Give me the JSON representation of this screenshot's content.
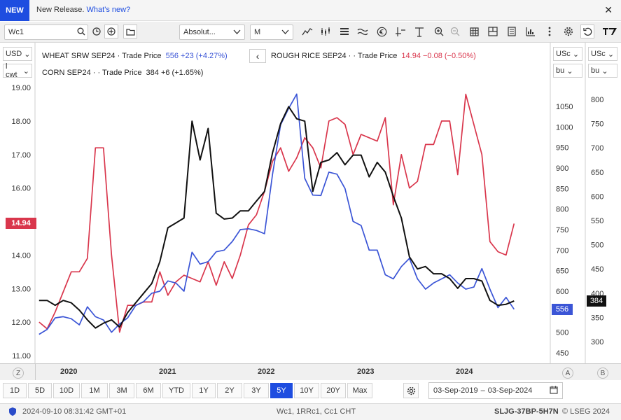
{
  "banner": {
    "badge": "NEW",
    "text": "New Release.",
    "link": "What's new?",
    "close": "✕"
  },
  "toolbar": {
    "symbol_value": "Wc1",
    "mode_label": "Absolut...",
    "interval_label": "M",
    "icons": [
      "search-icon",
      "clock-icon",
      "add-icon",
      "folder-icon",
      "line-chart-icon",
      "candle-icon",
      "bars-icon",
      "wave-icon",
      "euro-icon",
      "draw-icon",
      "text-icon",
      "zoom-in-icon",
      "zoom-out-icon",
      "grid-icon",
      "layout-icon",
      "book-icon",
      "studies-icon",
      "more-icon",
      "gear-icon",
      "undo-icon",
      "logo-icon"
    ]
  },
  "legend": {
    "wheat": {
      "name": "WHEAT SRW SEP24",
      "field": "Trade Price",
      "price": "556",
      "change": "+23 (+4.27%)"
    },
    "rice": {
      "name": "ROUGH RICE SEP24",
      "field": "Trade Price",
      "price": "14.94",
      "change": "−0.08 (−0.50%)"
    },
    "corn": {
      "name": "CORN SEP24",
      "field": "Trade Price",
      "price": "384",
      "change": "+6 (+1.65%)"
    },
    "collapse": "‹"
  },
  "left_axis": {
    "currency": "USD",
    "unit": "l cwt",
    "current_label": "14.94",
    "ticks": [
      "19.00",
      "18.00",
      "17.00",
      "16.00",
      "15.00",
      "14.00",
      "13.00",
      "12.00",
      "11.00"
    ]
  },
  "right_axis_a": {
    "currency": "USc",
    "unit": "bu",
    "current_label": "556",
    "ticks": [
      "1050",
      "1000",
      "950",
      "900",
      "850",
      "800",
      "750",
      "700",
      "650",
      "600",
      "550",
      "500",
      "450"
    ]
  },
  "right_axis_b": {
    "currency": "USc",
    "unit": "bu",
    "current_label": "384",
    "ticks": [
      "800",
      "750",
      "700",
      "650",
      "600",
      "550",
      "500",
      "450",
      "400",
      "350",
      "300"
    ]
  },
  "x_axis": {
    "labels": [
      "2020",
      "2021",
      "2022",
      "2023",
      "2024"
    ],
    "left_btn": "Z",
    "right_a_btn": "A",
    "right_b_btn": "B"
  },
  "ranges": [
    "1D",
    "5D",
    "10D",
    "1M",
    "3M",
    "6M",
    "YTD",
    "1Y",
    "2Y",
    "3Y",
    "5Y",
    "10Y",
    "20Y",
    "Max"
  ],
  "active_range": "5Y",
  "date_range": {
    "start": "03-Sep-2019",
    "sep": "–",
    "end": "03-Sep-2024"
  },
  "status": {
    "timestamp": "2024-09-10 08:31:42 GMT+01",
    "instruments": "Wc1, 1RRc1, Cc1 CHT",
    "id": "SLJG-37BP-5H7N",
    "copyright": "© LSEG 2024"
  },
  "colors": {
    "wheat": "#3b55d6",
    "rice": "#d9364c",
    "corn": "#111111",
    "accent": "#1e4de0"
  },
  "chart_data": {
    "type": "line",
    "x_range": [
      "2019-09",
      "2024-08"
    ],
    "series": [
      {
        "name": "ROUGH RICE SEP24",
        "axis": "left",
        "unit": "USD/cwt",
        "x": [
          "2019-09",
          "2019-10",
          "2019-11",
          "2019-12",
          "2020-01",
          "2020-02",
          "2020-03",
          "2020-04",
          "2020-05",
          "2020-06",
          "2020-07",
          "2020-08",
          "2020-09",
          "2020-10",
          "2020-11",
          "2020-12",
          "2021-01",
          "2021-02",
          "2021-03",
          "2021-04",
          "2021-05",
          "2021-06",
          "2021-07",
          "2021-08",
          "2021-09",
          "2021-10",
          "2021-11",
          "2021-12",
          "2022-01",
          "2022-02",
          "2022-03",
          "2022-04",
          "2022-05",
          "2022-06",
          "2022-07",
          "2022-08",
          "2022-09",
          "2022-10",
          "2022-11",
          "2022-12",
          "2023-01",
          "2023-02",
          "2023-03",
          "2023-04",
          "2023-05",
          "2023-06",
          "2023-07",
          "2023-08",
          "2023-09",
          "2023-10",
          "2023-11",
          "2023-12",
          "2024-01",
          "2024-02",
          "2024-03",
          "2024-04",
          "2024-05",
          "2024-06",
          "2024-07",
          "2024-08"
        ],
        "values": [
          12.0,
          11.8,
          12.3,
          12.9,
          13.5,
          13.5,
          13.9,
          17.2,
          17.2,
          14.0,
          11.7,
          12.5,
          12.5,
          12.6,
          12.6,
          13.5,
          12.8,
          13.2,
          13.4,
          13.3,
          13.2,
          13.8,
          13.1,
          13.8,
          13.3,
          14.0,
          14.9,
          15.2,
          15.9,
          16.8,
          17.2,
          16.5,
          16.9,
          17.5,
          17.2,
          16.6,
          18.0,
          18.1,
          17.9,
          17.0,
          17.6,
          17.5,
          17.4,
          18.1,
          15.5,
          17.0,
          16.0,
          16.2,
          17.3,
          17.3,
          18.0,
          18.0,
          16.4,
          18.8,
          17.9,
          17.0,
          14.4,
          14.1,
          14.0,
          14.94
        ]
      },
      {
        "name": "WHEAT SRW SEP24",
        "axis": "right_a",
        "unit": "USc/bu",
        "x": [
          "2019-09",
          "2019-10",
          "2019-11",
          "2019-12",
          "2020-01",
          "2020-02",
          "2020-03",
          "2020-04",
          "2020-05",
          "2020-06",
          "2020-07",
          "2020-08",
          "2020-09",
          "2020-10",
          "2020-11",
          "2020-12",
          "2021-01",
          "2021-02",
          "2021-03",
          "2021-04",
          "2021-05",
          "2021-06",
          "2021-07",
          "2021-08",
          "2021-09",
          "2021-10",
          "2021-11",
          "2021-12",
          "2022-01",
          "2022-02",
          "2022-03",
          "2022-04",
          "2022-05",
          "2022-06",
          "2022-07",
          "2022-08",
          "2022-09",
          "2022-10",
          "2022-11",
          "2022-12",
          "2023-01",
          "2023-02",
          "2023-03",
          "2023-04",
          "2023-05",
          "2023-06",
          "2023-07",
          "2023-08",
          "2023-09",
          "2023-10",
          "2023-11",
          "2023-12",
          "2024-01",
          "2024-02",
          "2024-03",
          "2024-04",
          "2024-05",
          "2024-06",
          "2024-07",
          "2024-08"
        ],
        "values": [
          495,
          507,
          535,
          538,
          533,
          518,
          562,
          538,
          530,
          500,
          520,
          535,
          565,
          575,
          595,
          600,
          625,
          620,
          600,
          695,
          666,
          672,
          696,
          700,
          721,
          750,
          752,
          748,
          740,
          885,
          1005,
          1045,
          1080,
          875,
          834,
          833,
          890,
          885,
          850,
          770,
          760,
          700,
          700,
          640,
          630,
          660,
          680,
          630,
          605,
          620,
          630,
          640,
          620,
          605,
          610,
          655,
          605,
          560,
          585,
          556
        ]
      },
      {
        "name": "CORN SEP24",
        "axis": "right_b",
        "unit": "USc/bu",
        "x": [
          "2019-09",
          "2019-10",
          "2019-11",
          "2019-12",
          "2020-01",
          "2020-02",
          "2020-03",
          "2020-04",
          "2020-05",
          "2020-06",
          "2020-07",
          "2020-08",
          "2020-09",
          "2020-10",
          "2020-11",
          "2020-12",
          "2021-01",
          "2021-02",
          "2021-03",
          "2021-04",
          "2021-05",
          "2021-06",
          "2021-07",
          "2021-08",
          "2021-09",
          "2021-10",
          "2021-11",
          "2021-12",
          "2022-01",
          "2022-02",
          "2022-03",
          "2022-04",
          "2022-05",
          "2022-06",
          "2022-07",
          "2022-08",
          "2022-09",
          "2022-10",
          "2022-11",
          "2022-12",
          "2023-01",
          "2023-02",
          "2023-03",
          "2023-04",
          "2023-05",
          "2023-06",
          "2023-07",
          "2023-08",
          "2023-09",
          "2023-10",
          "2023-11",
          "2023-12",
          "2024-01",
          "2024-02",
          "2024-03",
          "2024-04",
          "2024-05",
          "2024-06",
          "2024-07",
          "2024-08"
        ],
        "values": [
          385,
          385,
          375,
          385,
          380,
          365,
          345,
          328,
          338,
          345,
          330,
          360,
          380,
          400,
          420,
          465,
          535,
          545,
          555,
          755,
          675,
          740,
          565,
          553,
          555,
          570,
          570,
          590,
          610,
          690,
          750,
          785,
          760,
          755,
          610,
          670,
          675,
          690,
          665,
          685,
          685,
          640,
          670,
          650,
          600,
          555,
          475,
          450,
          455,
          440,
          440,
          430,
          410,
          430,
          430,
          425,
          385,
          375,
          377,
          384
        ]
      }
    ]
  }
}
